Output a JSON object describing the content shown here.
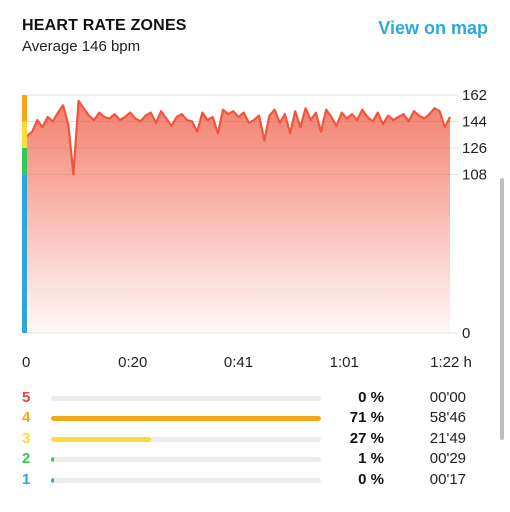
{
  "header": {
    "title": "HEART RATE ZONES",
    "subtitle": "Average 146 bpm",
    "map_link": "View on map"
  },
  "colors": {
    "accent": "#29a9df",
    "line": "#f0553f",
    "zone5": "#e8453c",
    "zone4": "#f4a816",
    "zone3": "#f9dc3a",
    "zone2": "#2ecc55",
    "zone1": "#2fa6d9"
  },
  "chart_data": {
    "type": "area",
    "title": "",
    "xlabel": "",
    "ylabel": "",
    "x_tick_labels": [
      "0",
      "0:20",
      "0:41",
      "1:01",
      "1:22 h"
    ],
    "x_ticks_minutes": [
      0,
      20.5,
      41,
      61.5,
      82
    ],
    "y_ticks": [
      0,
      108,
      126,
      144,
      162
    ],
    "xlim": [
      0,
      82
    ],
    "ylim": [
      0,
      162
    ],
    "grid": true,
    "zone_bands": [
      {
        "zone": "1",
        "from": 0,
        "to": 108,
        "color": "#2fa6d9"
      },
      {
        "zone": "2",
        "from": 108,
        "to": 126,
        "color": "#2ecc55"
      },
      {
        "zone": "3",
        "from": 126,
        "to": 144,
        "color": "#f9dc3a"
      },
      {
        "zone": "4",
        "from": 144,
        "to": 162,
        "color": "#f4a816"
      }
    ],
    "series": [
      {
        "x": [
          0,
          1,
          2,
          3,
          4,
          5,
          6,
          7,
          8,
          9,
          10,
          11,
          12,
          13,
          14,
          15,
          16,
          17,
          18,
          19,
          20,
          21,
          22,
          23,
          24,
          25,
          26,
          27,
          28,
          29,
          30,
          31,
          32,
          33,
          34,
          35,
          36,
          37,
          38,
          39,
          40,
          41,
          42,
          43,
          44,
          45,
          46,
          47,
          48,
          49,
          50,
          51,
          52,
          53,
          54,
          55,
          56,
          57,
          58,
          59,
          60,
          61,
          62,
          63,
          64,
          65,
          66,
          67,
          68,
          69,
          70,
          71,
          72,
          73,
          74,
          75,
          76,
          77,
          78,
          79,
          80,
          81,
          82
        ],
        "y": [
          134,
          137,
          145,
          140,
          147,
          144,
          150,
          155,
          142,
          108,
          158,
          153,
          148,
          145,
          150,
          147,
          146,
          149,
          145,
          147,
          150,
          146,
          144,
          148,
          150,
          143,
          151,
          146,
          141,
          147,
          149,
          145,
          144,
          137,
          150,
          145,
          147,
          136,
          152,
          149,
          151,
          147,
          150,
          143,
          145,
          148,
          131,
          148,
          152,
          143,
          149,
          136,
          151,
          140,
          153,
          145,
          150,
          137,
          152,
          147,
          141,
          150,
          146,
          149,
          145,
          152,
          147,
          144,
          150,
          142,
          148,
          145,
          147,
          149,
          144,
          151,
          148,
          146,
          149,
          153,
          151,
          140,
          147
        ]
      }
    ]
  },
  "zones": [
    {
      "num": "5",
      "percent": "0 %",
      "time": "00'00",
      "fraction": 0.0,
      "color": "#e8453c"
    },
    {
      "num": "4",
      "percent": "71 %",
      "time": "58'46",
      "fraction": 1.0,
      "color": "#f4a816"
    },
    {
      "num": "3",
      "percent": "27 %",
      "time": "21'49",
      "fraction": 0.37,
      "color": "#f9dc3a"
    },
    {
      "num": "2",
      "percent": "1 %",
      "time": "00'29",
      "fraction": 0.01,
      "color": "#2ecc55"
    },
    {
      "num": "1",
      "percent": "0 %",
      "time": "00'17",
      "fraction": 0.01,
      "color": "#2fa6d9"
    }
  ]
}
